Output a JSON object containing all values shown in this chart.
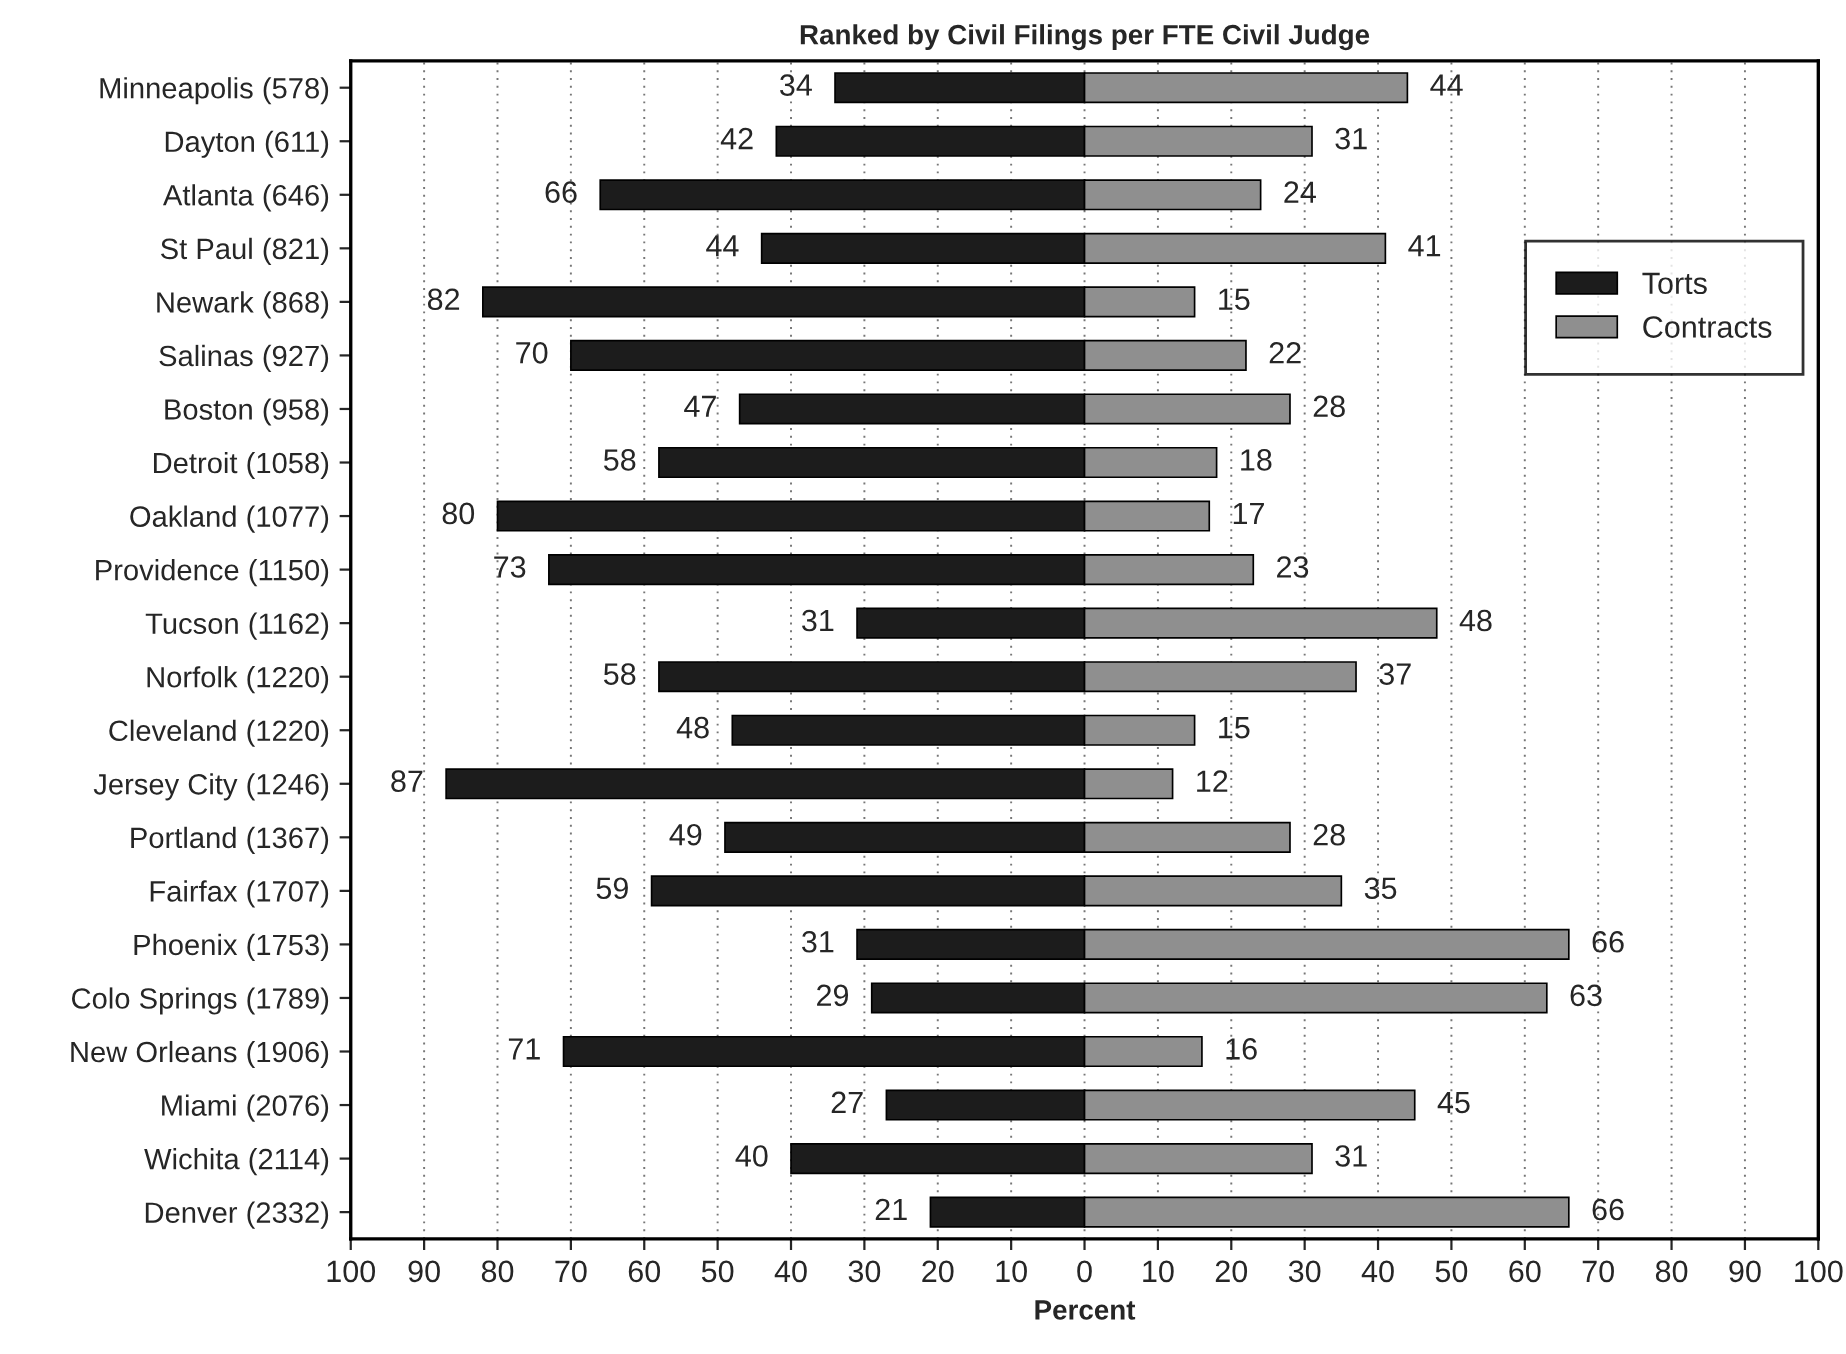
{
  "chart_data": {
    "type": "bar",
    "orientation": "horizontal",
    "title": "Ranked by Civil Filings per FTE Civil Judge",
    "xlabel": "Percent",
    "categories": [
      "Minneapolis (578)",
      "Dayton (611)",
      "Atlanta (646)",
      "St Paul (821)",
      "Newark (868)",
      "Salinas (927)",
      "Boston (958)",
      "Detroit (1058)",
      "Oakland (1077)",
      "Providence (1150)",
      "Tucson (1162)",
      "Norfolk (1220)",
      "Cleveland (1220)",
      "Jersey City (1246)",
      "Portland (1367)",
      "Fairfax (1707)",
      "Phoenix (1753)",
      "Colo Springs (1789)",
      "New Orleans (1906)",
      "Miami (2076)",
      "Wichita (2114)",
      "Denver (2332)"
    ],
    "series": [
      {
        "name": "Torts",
        "color": "#1c1c1c",
        "values": [
          34,
          42,
          66,
          44,
          82,
          70,
          47,
          58,
          80,
          73,
          31,
          58,
          48,
          87,
          49,
          59,
          31,
          29,
          71,
          27,
          40,
          21
        ],
        "base": [
          -34,
          -42,
          -66,
          -44,
          -82,
          -70,
          -47,
          -58,
          -80,
          -73,
          -31,
          -58,
          -48,
          -87,
          -49,
          -59,
          -31,
          -29,
          -71,
          -27,
          -40,
          -21
        ],
        "value_labels": [
          "34",
          "42",
          "66",
          "44",
          "82",
          "70",
          "47",
          "58",
          "80",
          "73",
          "31",
          "58",
          "48",
          "87",
          "49",
          "59",
          "31",
          "29",
          "71",
          "27",
          "40",
          "21"
        ]
      },
      {
        "name": "Contracts",
        "color": "#8f8f8f",
        "values": [
          44,
          31,
          24,
          41,
          15,
          22,
          28,
          18,
          17,
          23,
          48,
          37,
          15,
          12,
          28,
          35,
          66,
          63,
          16,
          45,
          31,
          66
        ],
        "value_labels": [
          "44",
          "31",
          "24",
          "41",
          "15",
          "22",
          "28",
          "18",
          "17",
          "23",
          "48",
          "37",
          "15",
          "12",
          "28",
          "35",
          "66",
          "63",
          "16",
          "45",
          "31",
          "66"
        ]
      }
    ],
    "xlim": [
      -100,
      100
    ],
    "xticks": [
      {
        "value": -100,
        "label": "100"
      },
      {
        "value": -90,
        "label": "90"
      },
      {
        "value": -80,
        "label": "80"
      },
      {
        "value": -70,
        "label": "70"
      },
      {
        "value": -60,
        "label": "60"
      },
      {
        "value": -50,
        "label": "50"
      },
      {
        "value": -40,
        "label": "40"
      },
      {
        "value": -30,
        "label": "30"
      },
      {
        "value": -20,
        "label": "20"
      },
      {
        "value": -10,
        "label": "10"
      },
      0,
      10,
      20,
      30,
      40,
      50,
      60,
      70,
      80,
      90,
      100
    ],
    "grid": "x",
    "legend": "top right"
  }
}
